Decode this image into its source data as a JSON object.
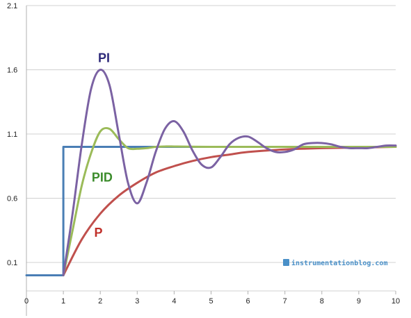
{
  "chart_data": {
    "type": "line",
    "title": "",
    "xlabel": "",
    "ylabel": "",
    "xlim": [
      0,
      10
    ],
    "ylim": [
      -0.1,
      2.1
    ],
    "x_ticks": [
      0,
      1,
      2,
      3,
      4,
      5,
      6,
      7,
      8,
      9,
      10
    ],
    "x_tick_labels": [
      "0",
      "1",
      "2",
      "3",
      "4",
      "5",
      "6",
      "7",
      "8",
      "9",
      "10"
    ],
    "y_ticks": [
      0.1,
      0.6,
      1.1,
      1.6,
      2.1
    ],
    "y_tick_labels": [
      "0.1",
      "0.6",
      "1.1",
      "1.6",
      "2.1"
    ],
    "grid": "horizontal",
    "series": [
      {
        "name": "Setpoint",
        "color": "#4a7eb5",
        "x": [
          0,
          1,
          1,
          10
        ],
        "y": [
          0,
          0,
          1,
          1
        ]
      },
      {
        "name": "P",
        "label": "P",
        "color": "#c0504d",
        "x": [
          1,
          1.5,
          2,
          2.5,
          3,
          3.5,
          4,
          4.5,
          5,
          5.5,
          6,
          7,
          8,
          9,
          10
        ],
        "y": [
          0,
          0.28,
          0.48,
          0.62,
          0.72,
          0.8,
          0.85,
          0.89,
          0.92,
          0.94,
          0.96,
          0.98,
          0.99,
          0.995,
          1.0
        ]
      },
      {
        "name": "PI",
        "label": "PI",
        "color": "#7b62a3",
        "x": [
          1,
          1.25,
          1.5,
          1.75,
          2,
          2.25,
          2.5,
          2.75,
          3,
          3.25,
          3.5,
          3.75,
          4,
          4.25,
          4.5,
          4.75,
          5,
          5.25,
          5.5,
          5.75,
          6,
          6.25,
          6.5,
          6.75,
          7,
          7.25,
          7.5,
          7.75,
          8,
          8.25,
          8.5,
          8.75,
          9,
          9.25,
          9.5,
          9.75,
          10
        ],
        "y": [
          0.0,
          0.48,
          1.02,
          1.45,
          1.6,
          1.48,
          1.1,
          0.72,
          0.56,
          0.72,
          0.96,
          1.14,
          1.2,
          1.12,
          0.97,
          0.86,
          0.84,
          0.92,
          1.02,
          1.07,
          1.08,
          1.04,
          0.99,
          0.96,
          0.96,
          0.98,
          1.02,
          1.03,
          1.03,
          1.02,
          1.0,
          0.99,
          0.99,
          0.99,
          1.0,
          1.01,
          1.01
        ]
      },
      {
        "name": "PID",
        "label": "PID",
        "color": "#9bbb59",
        "x": [
          1,
          1.25,
          1.5,
          1.75,
          2,
          2.25,
          2.5,
          2.75,
          3,
          3.25,
          3.5,
          3.75,
          4,
          5,
          6,
          7,
          8,
          9,
          10
        ],
        "y": [
          0.0,
          0.35,
          0.7,
          0.95,
          1.12,
          1.14,
          1.06,
          0.99,
          0.985,
          0.99,
          1.0,
          1.003,
          1.003,
          1.0,
          1.0,
          1.0,
          1.0,
          1.0,
          1.0
        ]
      }
    ],
    "annotations": [
      {
        "text": "PI",
        "series": "PI",
        "x": 2.1,
        "y": 1.66
      },
      {
        "text": "PID",
        "series": "PID",
        "x": 2.05,
        "y": 0.73
      },
      {
        "text": "P",
        "series": "P",
        "x": 1.95,
        "y": 0.3
      }
    ],
    "watermark": "instrumentationblog.com"
  }
}
